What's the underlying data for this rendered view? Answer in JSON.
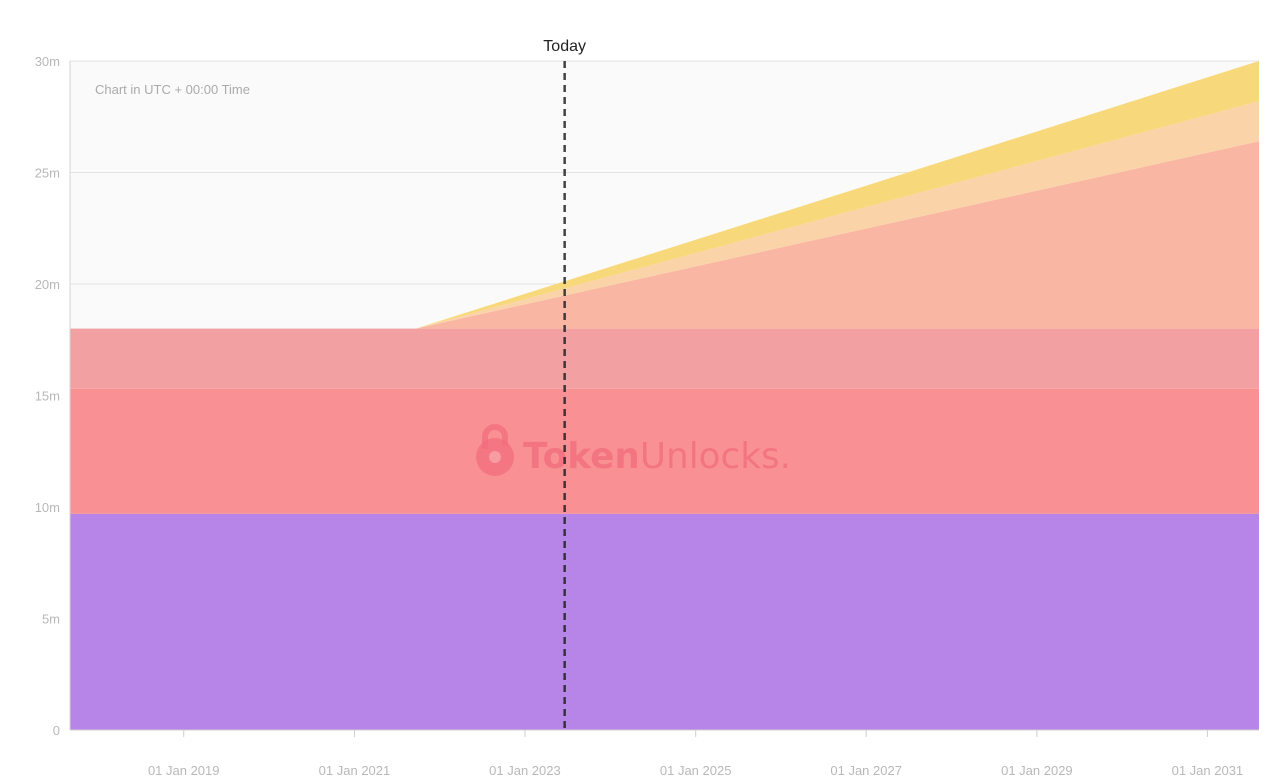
{
  "chart_data": {
    "type": "area",
    "stacked": true,
    "x_unit": "date",
    "y_tick_labels": [
      "0",
      "5m",
      "10m",
      "15m",
      "20m",
      "25m",
      "30m"
    ],
    "y_tick_values": [
      0,
      5000000,
      10000000,
      15000000,
      20000000,
      25000000,
      30000000
    ],
    "ylim": [
      0,
      30000000
    ],
    "x_tick_labels": [
      "01 Jan 2019",
      "01 Jan 2021",
      "01 Jan 2023",
      "01 Jan 2025",
      "01 Jan 2027",
      "01 Jan 2029",
      "01 Jan 2031"
    ],
    "x_tick_dates": [
      "2019-01-01",
      "2021-01-01",
      "2023-01-01",
      "2025-01-01",
      "2027-01-01",
      "2029-01-01",
      "2031-01-01"
    ],
    "xlim": [
      "2017-09-01",
      "2031-08-10"
    ],
    "grid": true,
    "annotation_note": "Chart in UTC + 00:00 Time",
    "today_label": "Today",
    "today_date": "2023-06-20",
    "series": [
      {
        "color": "#b784e8",
        "x": [
          "2017-09-01",
          "2031-08-10"
        ],
        "values": [
          9700000,
          9700000
        ]
      },
      {
        "color": "#f99094",
        "x": [
          "2017-09-01",
          "2031-08-10"
        ],
        "values": [
          5600000,
          5600000
        ]
      },
      {
        "color": "#f2a0a2",
        "x": [
          "2017-09-01",
          "2031-08-10"
        ],
        "values": [
          2700000,
          2700000
        ]
      },
      {
        "color": "#f9b6a3",
        "x": [
          "2017-09-01",
          "2021-09-20",
          "2031-08-10"
        ],
        "values": [
          0,
          0,
          8400000
        ]
      },
      {
        "color": "#fbd3a9",
        "x": [
          "2017-09-01",
          "2021-09-20",
          "2031-08-10"
        ],
        "values": [
          0,
          0,
          1800000
        ]
      },
      {
        "color": "#f7d97c",
        "x": [
          "2017-09-01",
          "2021-09-20",
          "2031-08-10"
        ],
        "values": [
          0,
          0,
          1800000
        ]
      }
    ]
  },
  "watermark": {
    "brand_bold": "Token",
    "brand_light": "Unlocks.",
    "color": "#f26d7d",
    "icon": "padlock-icon"
  },
  "colors": {
    "plot_background": "#fafafa",
    "grid": "#e3e3e3",
    "today_line": "#222222"
  }
}
